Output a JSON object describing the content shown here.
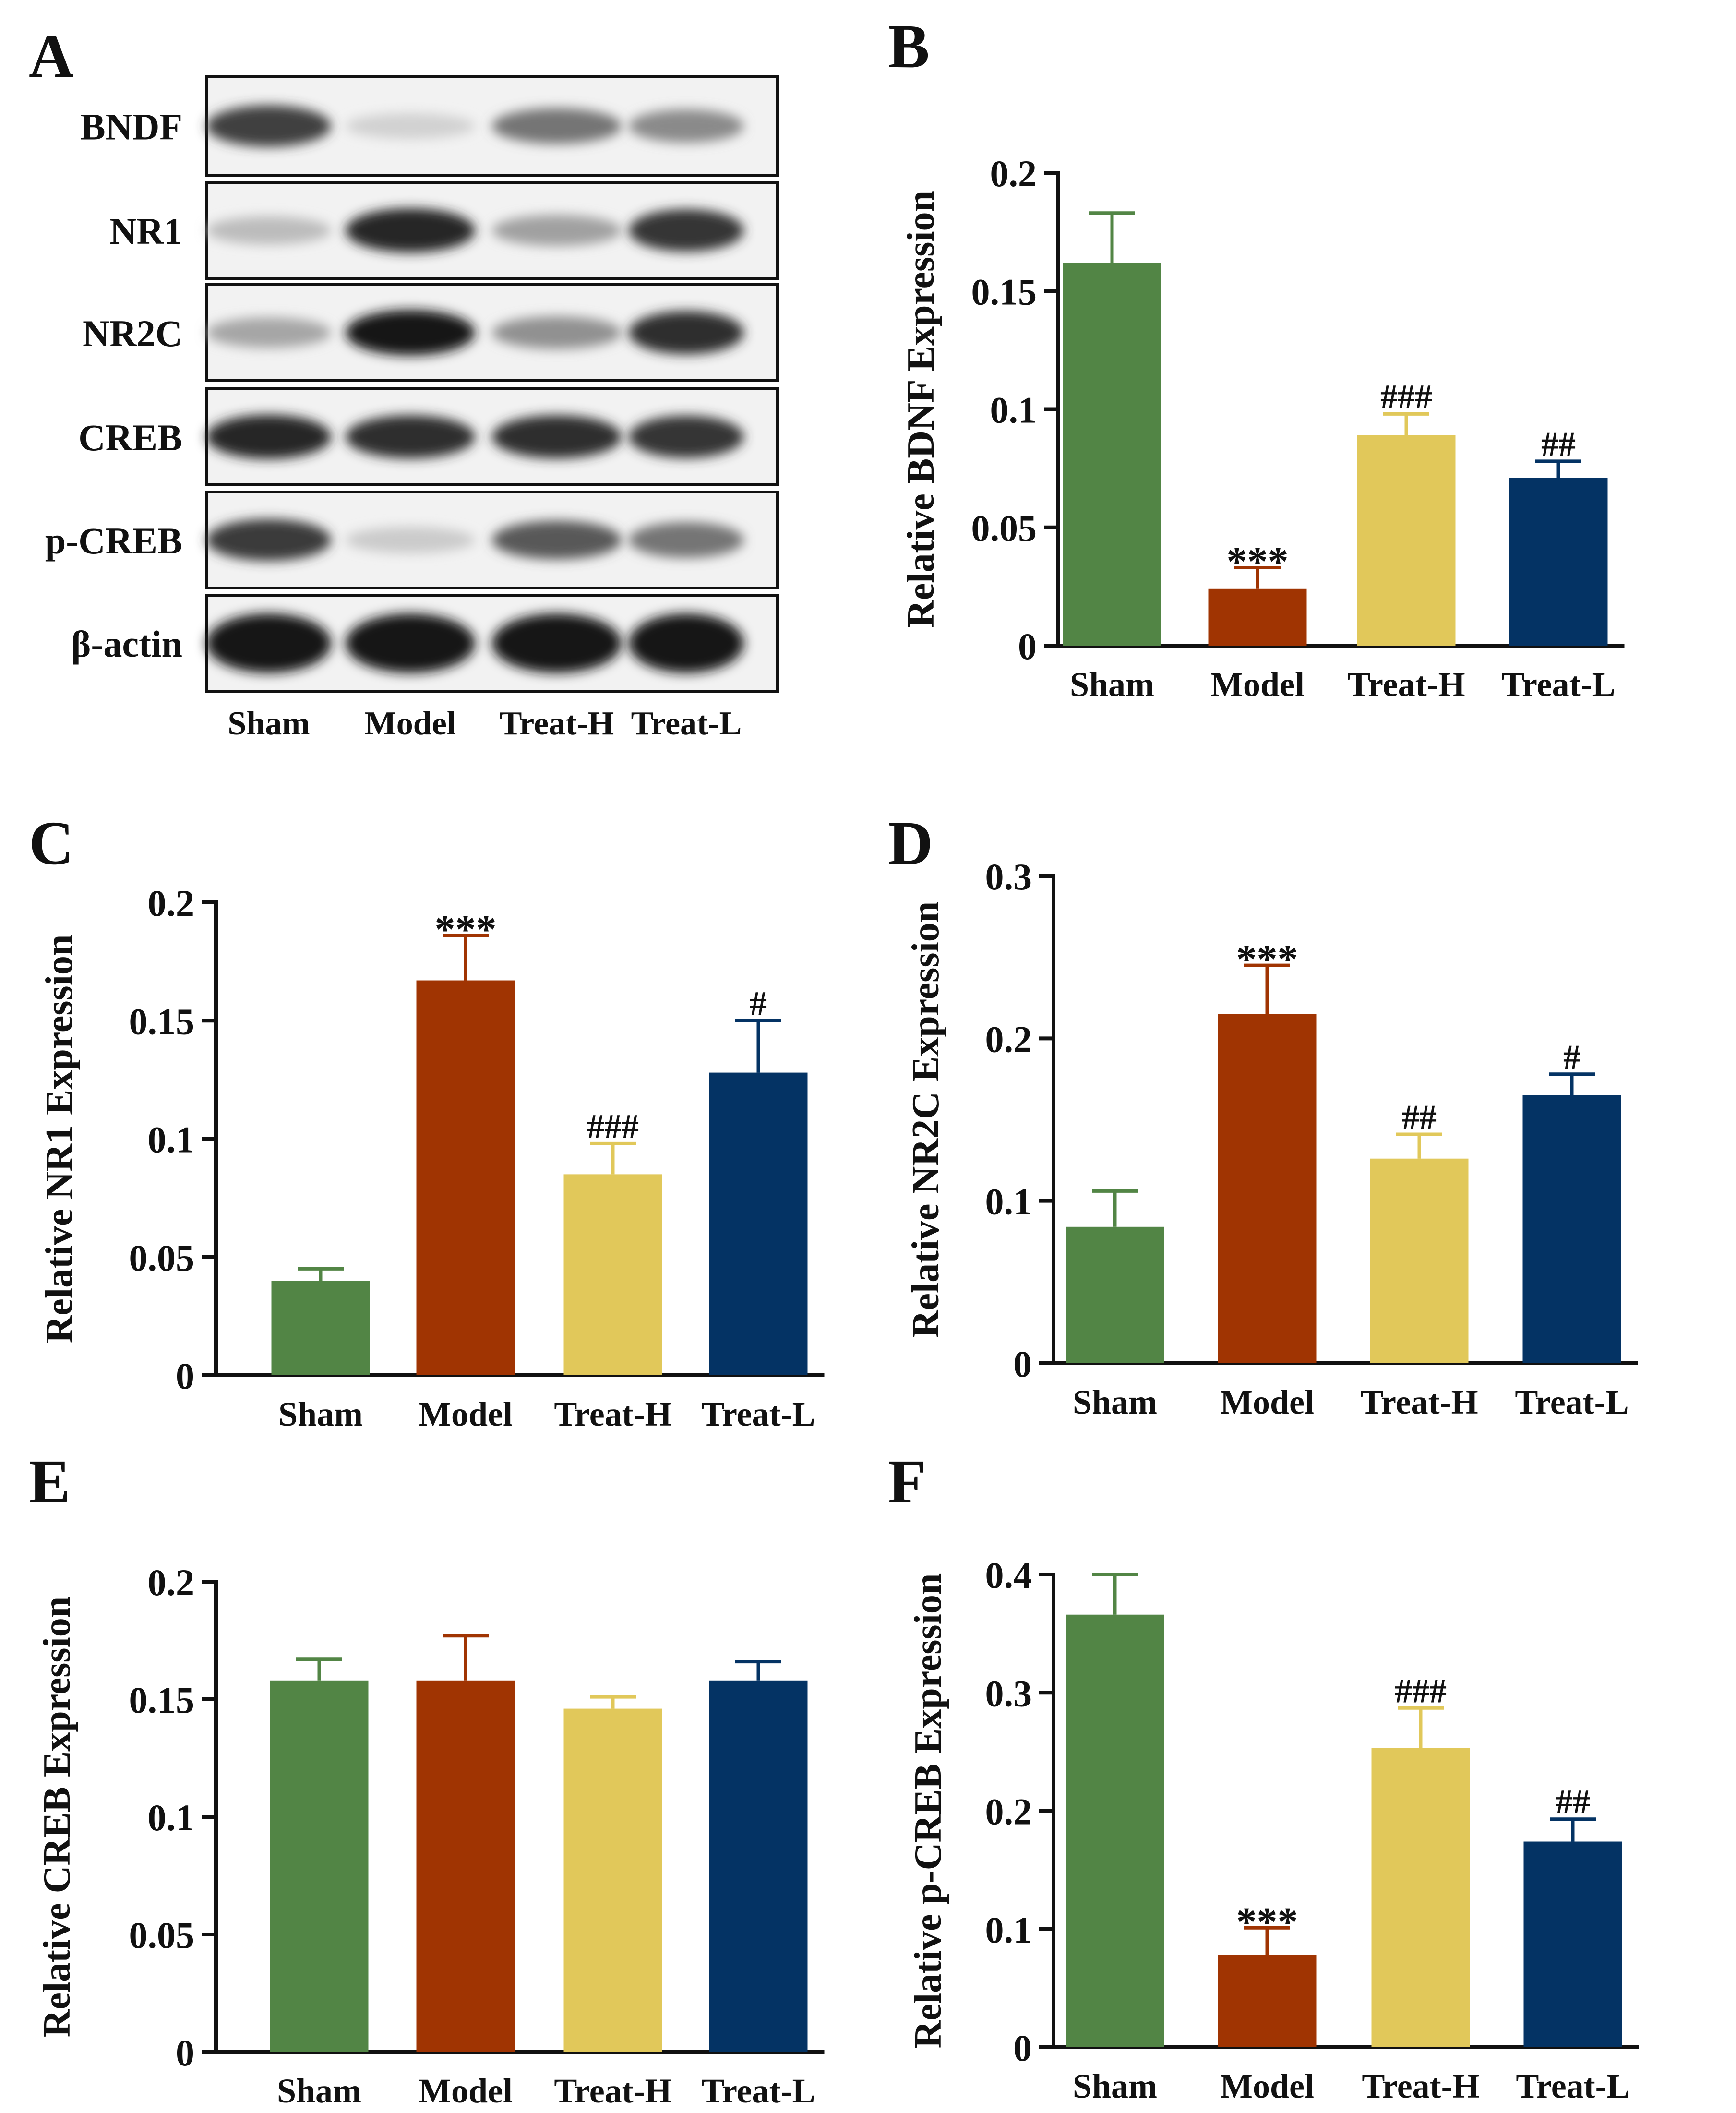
{
  "colors": {
    "Sham": "#528545",
    "Model": "#a03402",
    "Treat-H": "#e1c85a",
    "Treat-L": "#043364",
    "axis": "#111111",
    "blot_bg": "#f2f2f2",
    "band": "#1c1c1c"
  },
  "western_blot": {
    "panel_label": "A",
    "rows": [
      {
        "label": "BNDF",
        "intensities": [
          0.8,
          0.12,
          0.55,
          0.45
        ]
      },
      {
        "label": "NR1",
        "intensities": [
          0.22,
          0.92,
          0.35,
          0.85
        ]
      },
      {
        "label": "NR2C",
        "intensities": [
          0.32,
          0.98,
          0.42,
          0.88
        ]
      },
      {
        "label": "CREB",
        "intensities": [
          0.92,
          0.88,
          0.88,
          0.85
        ]
      },
      {
        "label": "p-CREB",
        "intensities": [
          0.82,
          0.15,
          0.68,
          0.55
        ]
      },
      {
        "label": "β-actin",
        "intensities": [
          1.0,
          1.0,
          1.0,
          1.0
        ]
      }
    ],
    "lanes": [
      "Sham",
      "Model",
      "Treat-H",
      "Treat-L"
    ]
  },
  "chart_data": [
    {
      "panel_label": "B",
      "type": "bar",
      "ylabel": "Relative BDNF Expression",
      "categories": [
        "Sham",
        "Model",
        "Treat-H",
        "Treat-L"
      ],
      "values": [
        0.162,
        0.024,
        0.089,
        0.071
      ],
      "errors": [
        0.021,
        0.009,
        0.009,
        0.007
      ],
      "annotations": [
        "",
        "***",
        "###",
        "##"
      ],
      "ylim": [
        0,
        0.2
      ],
      "yticks": [
        0,
        0.05,
        0.1,
        0.15,
        0.2
      ],
      "yticklabels": [
        "0",
        "0.05",
        "0.1",
        "0.15",
        "0.2"
      ]
    },
    {
      "panel_label": "C",
      "type": "bar",
      "ylabel": "Relative NR1 Expression",
      "categories": [
        "Sham",
        "Model",
        "Treat-H",
        "Treat-L"
      ],
      "values": [
        0.04,
        0.167,
        0.085,
        0.128
      ],
      "errors": [
        0.005,
        0.019,
        0.013,
        0.022
      ],
      "annotations": [
        "",
        "***",
        "###",
        "#"
      ],
      "ylim": [
        0,
        0.2
      ],
      "yticks": [
        0,
        0.05,
        0.1,
        0.15,
        0.2
      ],
      "yticklabels": [
        "0",
        "0.05",
        "0.1",
        "0.15",
        "0.2"
      ]
    },
    {
      "panel_label": "D",
      "type": "bar",
      "ylabel": "Relative NR2C Expression",
      "categories": [
        "Sham",
        "Model",
        "Treat-H",
        "Treat-L"
      ],
      "values": [
        0.084,
        0.215,
        0.126,
        0.165
      ],
      "errors": [
        0.022,
        0.03,
        0.015,
        0.013
      ],
      "annotations": [
        "",
        "***",
        "##",
        "#"
      ],
      "ylim": [
        0,
        0.3
      ],
      "yticks": [
        0,
        0.1,
        0.2,
        0.3
      ],
      "yticklabels": [
        "0",
        "0.1",
        "0.2",
        "0.3"
      ]
    },
    {
      "panel_label": "E",
      "type": "bar",
      "ylabel": "Relative CREB Expression",
      "categories": [
        "Sham",
        "Model",
        "Treat-H",
        "Treat-L"
      ],
      "values": [
        0.158,
        0.158,
        0.146,
        0.158
      ],
      "errors": [
        0.009,
        0.019,
        0.005,
        0.008
      ],
      "annotations": [
        "",
        "",
        "",
        ""
      ],
      "ylim": [
        0,
        0.2
      ],
      "yticks": [
        0,
        0.05,
        0.1,
        0.15,
        0.2
      ],
      "yticklabels": [
        "0",
        "0.05",
        "0.1",
        "0.15",
        "0.2"
      ]
    },
    {
      "panel_label": "F",
      "type": "bar",
      "ylabel": "Relative p-CREB Expression",
      "categories": [
        "Sham",
        "Model",
        "Treat-H",
        "Treat-L"
      ],
      "values": [
        0.366,
        0.078,
        0.253,
        0.174
      ],
      "errors": [
        0.034,
        0.023,
        0.034,
        0.019
      ],
      "annotations": [
        "",
        "***",
        "###",
        "##"
      ],
      "ylim": [
        0,
        0.4
      ],
      "yticks": [
        0,
        0.1,
        0.2,
        0.3,
        0.4
      ],
      "yticklabels": [
        "0",
        "0.1",
        "0.2",
        "0.3",
        "0.4"
      ]
    }
  ]
}
